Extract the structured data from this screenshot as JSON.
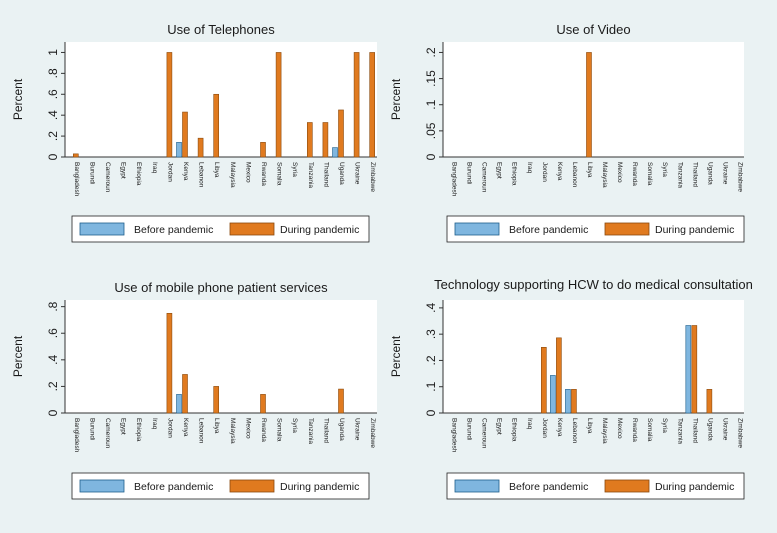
{
  "colors": {
    "before": "#7fb6df",
    "before_stroke": "#1f5f8c",
    "during": "#e07a1f",
    "during_stroke": "#8a4a0e",
    "plot_bg": "#ffffff",
    "page_bg": "#eaf2f3",
    "axis": "#333333"
  },
  "legend": {
    "before": "Before pandemic",
    "during": "During pandemic"
  },
  "chart_data": [
    {
      "type": "bar",
      "title": "Use of Telephones",
      "ylabel": "Percent",
      "ylim": [
        0,
        1.1
      ],
      "yticks": [
        0,
        0.2,
        0.4,
        0.6,
        0.8,
        1
      ],
      "ytick_labels": [
        "0",
        ".2",
        ".4",
        ".6",
        ".8",
        "1"
      ],
      "categories": [
        "Bangladesh",
        "Burundi",
        "Cameroun",
        "Egypt",
        "Ethiopia",
        "Iraq",
        "Jordan",
        "Kenya",
        "Lebanon",
        "Libya",
        "Malaysia",
        "Mexico",
        "Rwanda",
        "Somalia",
        "Syria",
        "Tanzania",
        "Thailand",
        "Uganda",
        "Ukraine",
        "Zimbabwe"
      ],
      "series": [
        {
          "name": "Before pandemic",
          "values": [
            0,
            0,
            0,
            0,
            0,
            0,
            0,
            0.14,
            0,
            0,
            0,
            0,
            0,
            0,
            0,
            0,
            0,
            0.09,
            0,
            0
          ]
        },
        {
          "name": "During pandemic",
          "values": [
            0.03,
            0,
            0,
            0,
            0,
            0,
            1,
            0.43,
            0.18,
            0.6,
            0,
            0,
            0.14,
            1,
            0,
            0.33,
            0.33,
            0.45,
            1,
            1
          ]
        }
      ]
    },
    {
      "type": "bar",
      "title": "Use of Video",
      "ylabel": "Percent",
      "ylim": [
        0,
        0.22
      ],
      "yticks": [
        0,
        0.05,
        0.1,
        0.15,
        0.2
      ],
      "ytick_labels": [
        "0",
        ".05",
        ".1",
        ".15",
        ".2"
      ],
      "categories": [
        "Bangladesh",
        "Burundi",
        "Cameroun",
        "Egypt",
        "Ethiopia",
        "Iraq",
        "Jordan",
        "Kenya",
        "Lebanon",
        "Libya",
        "Malaysia",
        "Mexico",
        "Rwanda",
        "Somalia",
        "Syria",
        "Tanzania",
        "Thailand",
        "Uganda",
        "Ukraine",
        "Zimbabwe"
      ],
      "series": [
        {
          "name": "Before pandemic",
          "values": [
            0,
            0,
            0,
            0,
            0,
            0,
            0,
            0,
            0,
            0,
            0,
            0,
            0,
            0,
            0,
            0,
            0,
            0,
            0,
            0
          ]
        },
        {
          "name": "During pandemic",
          "values": [
            0,
            0,
            0,
            0,
            0,
            0,
            0,
            0,
            0,
            0.2,
            0,
            0,
            0,
            0,
            0,
            0,
            0,
            0,
            0,
            0
          ]
        }
      ]
    },
    {
      "type": "bar",
      "title": "Use of mobile phone patient services",
      "ylabel": "Percent",
      "ylim": [
        0,
        0.85
      ],
      "yticks": [
        0,
        0.2,
        0.4,
        0.6,
        0.8
      ],
      "ytick_labels": [
        "0",
        ".2",
        ".4",
        ".6",
        ".8"
      ],
      "categories": [
        "Bangladesh",
        "Burundi",
        "Cameroun",
        "Egypt",
        "Ethiopia",
        "Iraq",
        "Jordan",
        "Kenya",
        "Lebanon",
        "Libya",
        "Malaysia",
        "Mexico",
        "Rwanda",
        "Somalia",
        "Syria",
        "Tanzania",
        "Thailand",
        "Uganda",
        "Ukraine",
        "Zimbabwe"
      ],
      "series": [
        {
          "name": "Before pandemic",
          "values": [
            0,
            0,
            0,
            0,
            0,
            0,
            0,
            0.14,
            0,
            0,
            0,
            0,
            0,
            0,
            0,
            0,
            0,
            0,
            0,
            0
          ]
        },
        {
          "name": "During pandemic",
          "values": [
            0,
            0,
            0,
            0,
            0,
            0,
            0.75,
            0.29,
            0,
            0.2,
            0,
            0,
            0.14,
            0,
            0,
            0,
            0,
            0.18,
            0,
            0
          ]
        }
      ]
    },
    {
      "type": "bar",
      "title": "Technology supporting HCW to do medical consultation",
      "ylabel": "Percent",
      "ylim": [
        0,
        0.43
      ],
      "yticks": [
        0,
        0.1,
        0.2,
        0.3,
        0.4
      ],
      "ytick_labels": [
        "0",
        ".1",
        ".2",
        ".3",
        ".4"
      ],
      "categories": [
        "Bangladesh",
        "Burundi",
        "Cameroun",
        "Egypt",
        "Ethiopia",
        "Iraq",
        "Jordan",
        "Kenya",
        "Lebanon",
        "Libya",
        "Malaysia",
        "Mexico",
        "Rwanda",
        "Somalia",
        "Syria",
        "Tanzania",
        "Thailand",
        "Uganda",
        "Ukraine",
        "Zimbabwe"
      ],
      "series": [
        {
          "name": "Before pandemic",
          "values": [
            0,
            0,
            0,
            0,
            0,
            0,
            0,
            0.143,
            0.09,
            0,
            0,
            0,
            0,
            0,
            0,
            0,
            0.333,
            0,
            0,
            0
          ]
        },
        {
          "name": "During pandemic",
          "values": [
            0,
            0,
            0,
            0,
            0,
            0,
            0.25,
            0.286,
            0.09,
            0,
            0,
            0,
            0,
            0,
            0,
            0,
            0.333,
            0.09,
            0,
            0
          ]
        }
      ]
    }
  ]
}
